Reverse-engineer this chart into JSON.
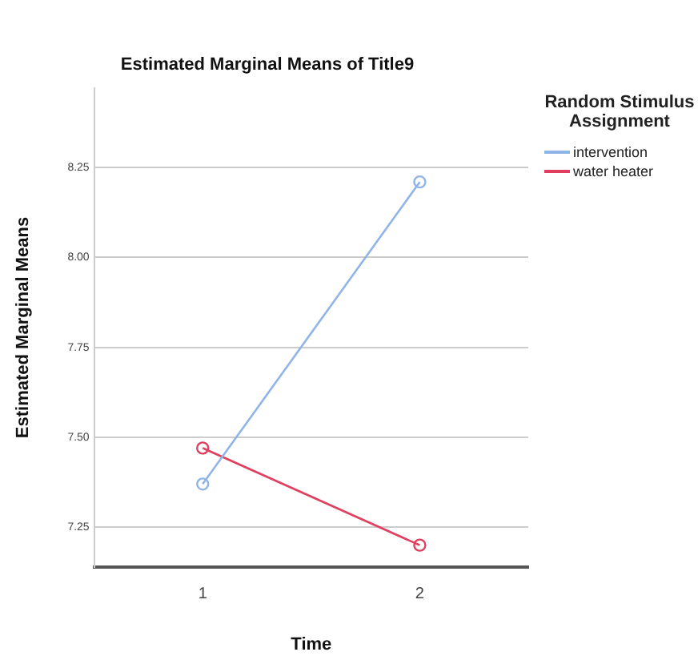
{
  "chart_data": {
    "type": "line",
    "title": "Estimated Marginal Means of Title9",
    "xlabel": "Time",
    "ylabel": "Estimated Marginal Means",
    "legend_title": "Random Stimulus Assignment",
    "categories": [
      "1",
      "2"
    ],
    "series": [
      {
        "name": "intervention",
        "color": "#8fb4e8",
        "values": [
          7.37,
          8.21
        ]
      },
      {
        "name": "water heater",
        "color": "#e0405e",
        "values": [
          7.47,
          7.2
        ]
      }
    ],
    "ylim": [
      7.14,
      8.47
    ],
    "yticks": [
      7.25,
      {
        "value": 7.5,
        "label": "7.50"
      },
      7.75,
      {
        "value": 8,
        "label": "8.00"
      },
      8.25
    ],
    "grid": "y",
    "legend": "right",
    "marker": "circle",
    "line_style": "solid"
  }
}
